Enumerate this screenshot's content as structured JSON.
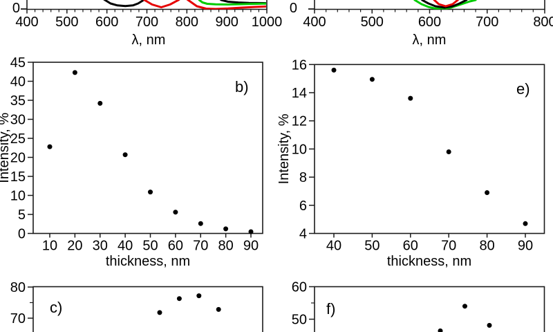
{
  "figure": {
    "background": "#ffffff",
    "text_color": "#000000",
    "axis_color": "#1a1a1a",
    "point_color": "#000000",
    "colors": {
      "black": "#000000",
      "red": "#e60000",
      "green": "#00cc00"
    }
  },
  "chart_data": [
    {
      "id": "top-left-spectrum",
      "type": "line",
      "xlabel": "λ, nm",
      "x_ticks": [
        400,
        500,
        600,
        700,
        800,
        900,
        1000
      ],
      "x_minor_step": 20,
      "y_ticks_visible": [
        "0"
      ],
      "y_unit": "px below top edge (upper part of panel cropped by image edge)",
      "series": [
        {
          "name": "curve-black-dip1",
          "color": "black",
          "points": [
            [
              588,
              -3
            ],
            [
              595,
              0
            ],
            [
              609,
              5
            ],
            [
              626,
              7.8
            ],
            [
              646,
              8.7
            ],
            [
              665,
              7.8
            ],
            [
              678,
              5
            ],
            [
              692,
              0
            ],
            [
              699,
              -3
            ]
          ]
        },
        {
          "name": "curve-red-dip1",
          "color": "red",
          "points": [
            [
              687,
              -3
            ],
            [
              694,
              0
            ],
            [
              713,
              6.5
            ],
            [
              736,
              10.5
            ],
            [
              758,
              6.5
            ],
            [
              779,
              0
            ],
            [
              786,
              -3
            ]
          ]
        },
        {
          "name": "curve-red-dip2",
          "color": "red",
          "points": [
            [
              796,
              -3
            ],
            [
              803,
              0
            ],
            [
              825,
              9
            ],
            [
              848,
              12.5
            ],
            [
              872,
              13
            ],
            [
              903,
              12.3
            ],
            [
              938,
              11
            ],
            [
              972,
              10
            ],
            [
              1000,
              9.3
            ]
          ]
        },
        {
          "name": "curve-black-right",
          "color": "black",
          "points": [
            [
              879,
              -3
            ],
            [
              886,
              0
            ],
            [
              903,
              2.5
            ],
            [
              929,
              3.6
            ],
            [
              955,
              4.3
            ],
            [
              1000,
              4.6
            ]
          ]
        },
        {
          "name": "curve-green",
          "color": "green",
          "points": [
            [
              827,
              -3
            ],
            [
              831,
              0
            ],
            [
              839,
              3.5
            ],
            [
              851,
              5.5
            ],
            [
              872,
              6.3
            ],
            [
              903,
              6.5
            ],
            [
              955,
              5.8
            ],
            [
              1000,
              5.2
            ]
          ]
        }
      ]
    },
    {
      "id": "top-right-spectrum",
      "type": "line",
      "xlabel": "λ, nm",
      "x_ticks": [
        400,
        500,
        600,
        700,
        800
      ],
      "x_minor_step": 20,
      "y_ticks_visible": [
        "0"
      ],
      "y_unit": "px below top edge (upper part of panel cropped by image edge)",
      "series": [
        {
          "name": "curve-green",
          "color": "green",
          "points": [
            [
              572,
              -3
            ],
            [
              574,
              0
            ],
            [
              586,
              6
            ],
            [
              598,
              10
            ],
            [
              610,
              12.3
            ],
            [
              623,
              13
            ],
            [
              637,
              11
            ],
            [
              652,
              7
            ],
            [
              670,
              2
            ],
            [
              680,
              0
            ],
            [
              682,
              -3
            ]
          ]
        },
        {
          "name": "curve-black",
          "color": "black",
          "points": [
            [
              585,
              -3
            ],
            [
              587,
              0
            ],
            [
              598,
              5
            ],
            [
              610,
              9
            ],
            [
              626,
              11
            ],
            [
              640,
              9
            ],
            [
              652,
              5
            ],
            [
              664,
              0
            ],
            [
              667,
              -3
            ]
          ]
        },
        {
          "name": "curve-red",
          "color": "red",
          "points": [
            [
              605,
              -3
            ],
            [
              608,
              0
            ],
            [
              616,
              6
            ],
            [
              628,
              9
            ],
            [
              640,
              6
            ],
            [
              649,
              0
            ],
            [
              651,
              -3
            ]
          ]
        }
      ]
    },
    {
      "id": "b",
      "type": "scatter",
      "panel_label": "b)",
      "xlabel": "thickness, nm",
      "ylabel": "Intensity, %",
      "x_ticks": [
        10,
        20,
        30,
        40,
        50,
        60,
        70,
        80,
        90
      ],
      "y_ticks": [
        0,
        5,
        10,
        15,
        20,
        25,
        30,
        35,
        40,
        45
      ],
      "y_minor_ticks": [],
      "ylim": [
        0,
        45
      ],
      "points": [
        [
          10,
          22.8
        ],
        [
          20,
          42.3
        ],
        [
          30,
          34.2
        ],
        [
          40,
          20.7
        ],
        [
          50,
          10.9
        ],
        [
          60,
          5.6
        ],
        [
          70,
          2.6
        ],
        [
          80,
          1.2
        ],
        [
          90,
          0.45
        ]
      ]
    },
    {
      "id": "e",
      "type": "scatter",
      "panel_label": "e)",
      "xlabel": "thickness, nm",
      "ylabel": "Intensity, %",
      "x_ticks": [
        40,
        50,
        60,
        70,
        80,
        90
      ],
      "y_ticks": [
        4,
        6,
        8,
        10,
        12,
        14,
        16
      ],
      "y_minor_ticks": [],
      "ylim": [
        4,
        16
      ],
      "points": [
        [
          40,
          15.6
        ],
        [
          50,
          14.95
        ],
        [
          60,
          13.6
        ],
        [
          70,
          9.8
        ],
        [
          80,
          6.9
        ],
        [
          90,
          4.7
        ]
      ]
    },
    {
      "id": "c",
      "type": "scatter",
      "panel_label": "c)",
      "cropped": true,
      "y_ticks": [
        70,
        80
      ],
      "y_minor_ticks": [
        75
      ],
      "points": [
        [
          50,
          71.8
        ],
        [
          60,
          76.3
        ],
        [
          70,
          77.2
        ],
        [
          80,
          72.8
        ]
      ]
    },
    {
      "id": "f",
      "type": "scatter",
      "panel_label": "f)",
      "cropped": true,
      "y_ticks": [
        50,
        60
      ],
      "y_minor_ticks": [
        55
      ],
      "points": [
        [
          60,
          46.4
        ],
        [
          70,
          54.0
        ],
        [
          80,
          48.1
        ]
      ]
    }
  ]
}
